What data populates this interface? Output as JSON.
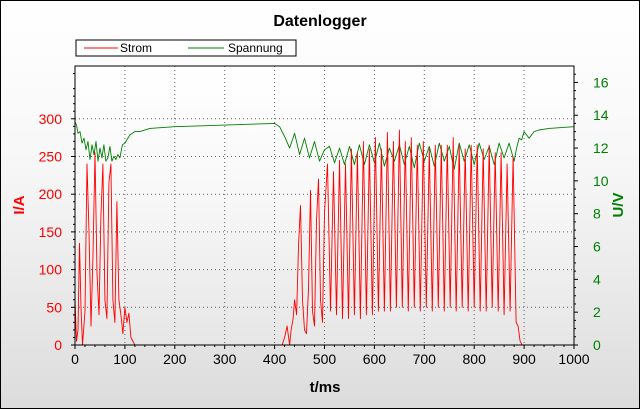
{
  "chart_data": {
    "type": "line",
    "title": "Datenlogger",
    "xlabel": "t/ms",
    "ylabel_left": "I/A",
    "ylabel_right": "U/V",
    "xlim": [
      0,
      1000
    ],
    "ylim_left": [
      0,
      370
    ],
    "ylim_right": [
      0,
      17
    ],
    "x_ticks": [
      0,
      100,
      200,
      300,
      400,
      500,
      600,
      700,
      800,
      900,
      1000
    ],
    "y_ticks_left": [
      0,
      50,
      100,
      150,
      200,
      250,
      300
    ],
    "y_ticks_right": [
      0,
      2,
      4,
      6,
      8,
      10,
      12,
      14,
      16
    ],
    "grid": true,
    "legend_position": "top-left",
    "colors": {
      "Strom": "#ff0000",
      "Spannung": "#008000",
      "left_axis": "#ff0000",
      "right_axis": "#008000"
    },
    "series": [
      {
        "name": "Strom",
        "axis": "left",
        "x": [
          0,
          3,
          6,
          9,
          12,
          15,
          20,
          24,
          28,
          32,
          36,
          40,
          44,
          48,
          52,
          56,
          60,
          64,
          68,
          72,
          76,
          80,
          84,
          88,
          92,
          96,
          100,
          104,
          108,
          112,
          120,
          140,
          200,
          300,
          400,
          415,
          420,
          425,
          430,
          433,
          437,
          440,
          444,
          448,
          452,
          456,
          460,
          464,
          468,
          472,
          476,
          480,
          484,
          488,
          492,
          496,
          500,
          506,
          512,
          518,
          524,
          530,
          536,
          542,
          548,
          554,
          560,
          566,
          572,
          578,
          584,
          590,
          596,
          602,
          608,
          614,
          620,
          626,
          632,
          638,
          644,
          650,
          656,
          662,
          668,
          674,
          680,
          686,
          692,
          698,
          704,
          710,
          716,
          722,
          728,
          734,
          740,
          746,
          752,
          758,
          764,
          770,
          776,
          782,
          788,
          794,
          800,
          806,
          812,
          818,
          824,
          830,
          836,
          842,
          848,
          854,
          860,
          866,
          872,
          878,
          884,
          888,
          892,
          896,
          900,
          906,
          920,
          1000
        ],
        "values": [
          60,
          5,
          20,
          135,
          50,
          0,
          45,
          240,
          150,
          25,
          120,
          255,
          95,
          40,
          170,
          240,
          60,
          35,
          215,
          240,
          60,
          30,
          190,
          60,
          40,
          15,
          50,
          30,
          42,
          10,
          0,
          0,
          0,
          0,
          0,
          0,
          10,
          25,
          0,
          20,
          35,
          60,
          40,
          135,
          185,
          60,
          20,
          15,
          75,
          205,
          45,
          25,
          165,
          220,
          60,
          30,
          175,
          240,
          45,
          230,
          40,
          245,
          35,
          240,
          35,
          260,
          40,
          255,
          35,
          270,
          40,
          260,
          40,
          275,
          45,
          260,
          45,
          282,
          45,
          270,
          50,
          285,
          50,
          270,
          45,
          275,
          50,
          265,
          45,
          270,
          50,
          260,
          45,
          265,
          50,
          265,
          45,
          265,
          50,
          275,
          45,
          265,
          50,
          260,
          45,
          265,
          50,
          265,
          45,
          260,
          45,
          265,
          50,
          255,
          45,
          255,
          40,
          240,
          45,
          250,
          30,
          25,
          5,
          0,
          0,
          0,
          0,
          0
        ]
      },
      {
        "name": "Spannung",
        "axis": "right",
        "x": [
          0,
          3,
          6,
          10,
          14,
          18,
          22,
          26,
          30,
          34,
          38,
          42,
          46,
          50,
          54,
          58,
          62,
          66,
          70,
          74,
          78,
          82,
          86,
          90,
          95,
          100,
          110,
          120,
          130,
          150,
          200,
          300,
          400,
          410,
          420,
          430,
          440,
          450,
          460,
          470,
          480,
          490,
          500,
          510,
          520,
          530,
          540,
          550,
          560,
          570,
          580,
          590,
          600,
          610,
          620,
          630,
          640,
          650,
          660,
          670,
          680,
          690,
          700,
          710,
          720,
          730,
          740,
          750,
          760,
          770,
          780,
          790,
          800,
          810,
          820,
          830,
          840,
          850,
          860,
          870,
          880,
          885,
          890,
          895,
          900,
          910,
          920,
          930,
          950,
          1000
        ],
        "values": [
          13.6,
          13.4,
          12.9,
          13.0,
          12.3,
          12.6,
          11.9,
          12.4,
          11.3,
          12.2,
          11.6,
          12.4,
          11.2,
          12.0,
          11.4,
          12.2,
          11.2,
          11.4,
          12.1,
          11.2,
          11.5,
          11.3,
          11.6,
          11.4,
          12.2,
          12.3,
          12.8,
          13.0,
          13.0,
          13.2,
          13.3,
          13.4,
          13.5,
          13.3,
          12.7,
          12.0,
          12.9,
          11.6,
          12.6,
          11.4,
          12.4,
          11.2,
          11.9,
          12.1,
          11.1,
          12.0,
          11.0,
          12.1,
          11.0,
          12.2,
          11.0,
          12.2,
          11.1,
          12.3,
          10.9,
          12.0,
          11.2,
          12.2,
          11.0,
          12.1,
          10.8,
          12.3,
          11.2,
          12.1,
          10.9,
          12.3,
          11.2,
          12.1,
          10.7,
          12.3,
          11.2,
          12.2,
          11.0,
          12.3,
          11.3,
          12.1,
          11.0,
          12.3,
          11.4,
          12.3,
          11.2,
          12.0,
          12.6,
          12.5,
          13.0,
          12.6,
          13.0,
          13.1,
          13.2,
          13.3
        ]
      }
    ]
  }
}
